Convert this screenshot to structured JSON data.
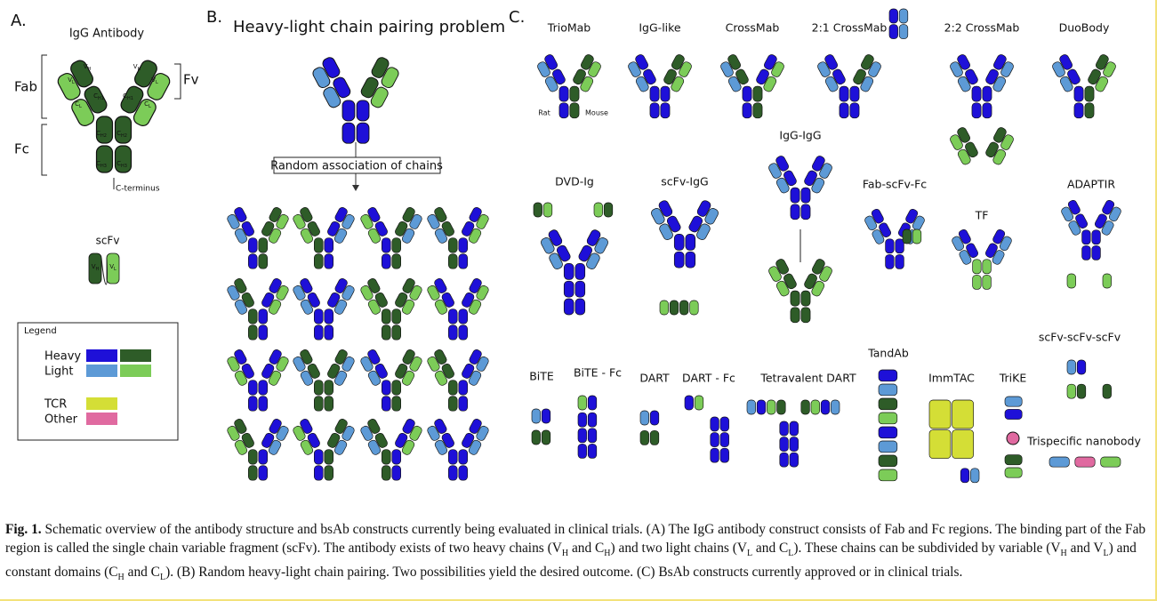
{
  "panel_a": {
    "label": "A.",
    "title": "IgG Antibody",
    "fab": "Fab",
    "fc": "Fc",
    "fv": "Fv",
    "c_terminus": "C-terminus",
    "domains": [
      {
        "base": "V",
        "sub": "H"
      },
      {
        "base": "V",
        "sub": "L"
      },
      {
        "base": "C",
        "sub": "H1"
      },
      {
        "base": "C",
        "sub": "L"
      },
      {
        "base": "V",
        "sub": "H"
      },
      {
        "base": "V",
        "sub": "L"
      },
      {
        "base": "C",
        "sub": "H1"
      },
      {
        "base": "C",
        "sub": "L"
      },
      {
        "base": "C",
        "sub": "H2"
      },
      {
        "base": "C",
        "sub": "H2"
      },
      {
        "base": "C",
        "sub": "H3"
      },
      {
        "base": "C",
        "sub": "H3"
      }
    ],
    "scfv": "scFv",
    "scfv_domains": [
      {
        "base": "V",
        "sub": "H"
      },
      {
        "base": "V",
        "sub": "L"
      }
    ],
    "legend": {
      "title": "Legend",
      "items": [
        "Heavy",
        "Light",
        "TCR",
        "Other"
      ]
    }
  },
  "panel_b": {
    "label": "B.",
    "title": "Heavy-light chain pairing problem",
    "step": "Random association of chains"
  },
  "panel_c": {
    "label": "C.",
    "constructs": [
      "TrioMab",
      "IgG-like",
      "CrossMab",
      "2:1 CrossMab",
      "2:2 CrossMab",
      "DuoBody",
      "IgG-IgG",
      "DVD-Ig",
      "scFv-IgG",
      "Fab-scFv-Fc",
      "ADAPTIR",
      "TF",
      "TandAb",
      "scFv-scFv-scFv",
      "BiTE",
      "BiTE - Fc",
      "DART",
      "DART - Fc",
      "Tetravalent DART",
      "ImmTAC",
      "TriKE",
      "Trispecific nanobody"
    ],
    "rat": "Rat",
    "mouse": "Mouse"
  },
  "caption": {
    "label": "Fig. 1.",
    "runs": [
      " Schematic overview of the antibody structure and bsAb constructs currently being evaluated in clinical trials. (A) The IgG antibody construct consists of Fab and Fc regions. The binding part of the Fab region is called the single chain variable fragment (scFv). The antibody exists of two heavy chains (V",
      {
        "text": "H"
      },
      " and C",
      {
        "text": "H"
      },
      ") and two light chains (V",
      {
        "text": "L"
      },
      " and C",
      {
        "text": "L"
      },
      "). These chains can be subdivided by variable (V",
      {
        "text": "H"
      },
      " and V",
      {
        "text": "L"
      },
      ") and constant domains (C",
      {
        "text": "H"
      },
      " and C",
      {
        "text": "L"
      },
      "). (B) Random heavy-light chain pairing. Two possibilities yield the desired outcome. (C) BsAb constructs currently approved or in clinical trials."
    ]
  }
}
